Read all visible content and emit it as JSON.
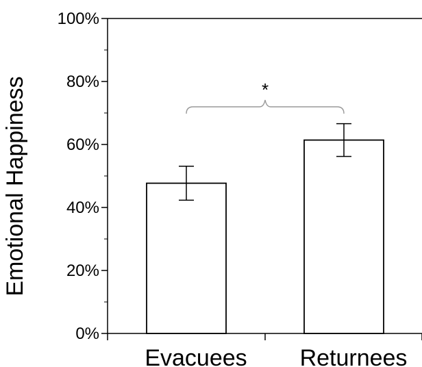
{
  "chart_data": {
    "type": "bar",
    "title": "",
    "xlabel": "",
    "ylabel": "Emotional Happiness",
    "categories": [
      "Evacuees",
      "Returnees"
    ],
    "values": [
      0.477,
      0.614
    ],
    "error": [
      0.054,
      0.052
    ],
    "ylim": [
      0,
      1
    ],
    "yticks": [
      0,
      0.2,
      0.4,
      0.6,
      0.8,
      1.0
    ],
    "ytick_labels": [
      "0%",
      "20%",
      "40%",
      "60%",
      "80%",
      "100%"
    ],
    "grid": false,
    "annotations": [
      {
        "text": "*",
        "between": [
          "Evacuees",
          "Returnees"
        ]
      }
    ],
    "colors": {
      "bar_fill": "#ffffff",
      "bar_stroke": "#000000",
      "brace": "#999999"
    }
  }
}
